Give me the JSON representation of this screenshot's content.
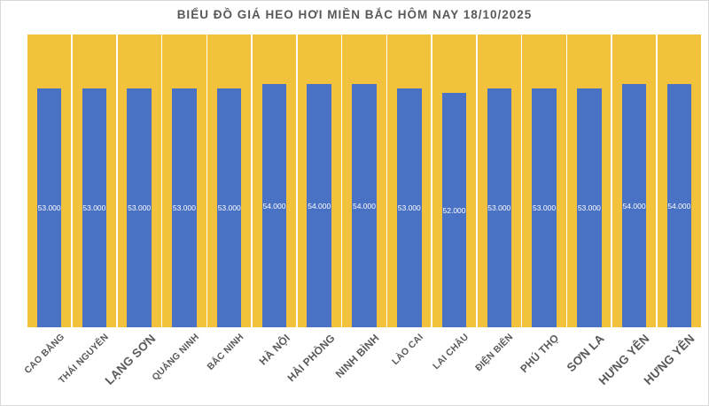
{
  "chart_data": {
    "type": "bar",
    "title": "BIỂU ĐỒ GIÁ HEO HƠI MIỀN BẮC HÔM NAY 18/10/2025",
    "categories": [
      "CAO BẰNG",
      "THÁI NGUYÊN",
      "LẠNG SƠN",
      "QUẢNG NINH",
      "BẮC NINH",
      "HÀ NỘI",
      "HẢI PHÒNG",
      "NINH BÌNH",
      "LÀO CAI",
      "LAI CHÂU",
      "ĐIỆN BIÊN",
      "PHÚ THỌ",
      "SƠN LA",
      "HƯNG YÊN",
      "HƯNG YÊN"
    ],
    "values": [
      53000,
      53000,
      53000,
      53000,
      53000,
      54000,
      54000,
      54000,
      53000,
      52000,
      53000,
      53000,
      53000,
      54000,
      54000
    ],
    "value_labels": [
      "53.000",
      "53.000",
      "53.000",
      "53.000",
      "53.000",
      "54.000",
      "54.000",
      "54.000",
      "53.000",
      "52.000",
      "53.000",
      "53.000",
      "53.000",
      "54.000",
      "54.000"
    ],
    "xlabel": "",
    "ylabel": "",
    "ylim": [
      0,
      65000
    ],
    "grid": false,
    "legend_position": "none",
    "bar_label_position": "center",
    "category_label_rotation": -45
  },
  "colors": {
    "bar": "#4A72C4",
    "plot_background_bar": "#F2C23C",
    "title_text": "#595959",
    "category_text": "#595959",
    "value_text": "#FFFFFF",
    "page_border": "#D9D9D9",
    "page_background": "#FFFFFF"
  }
}
